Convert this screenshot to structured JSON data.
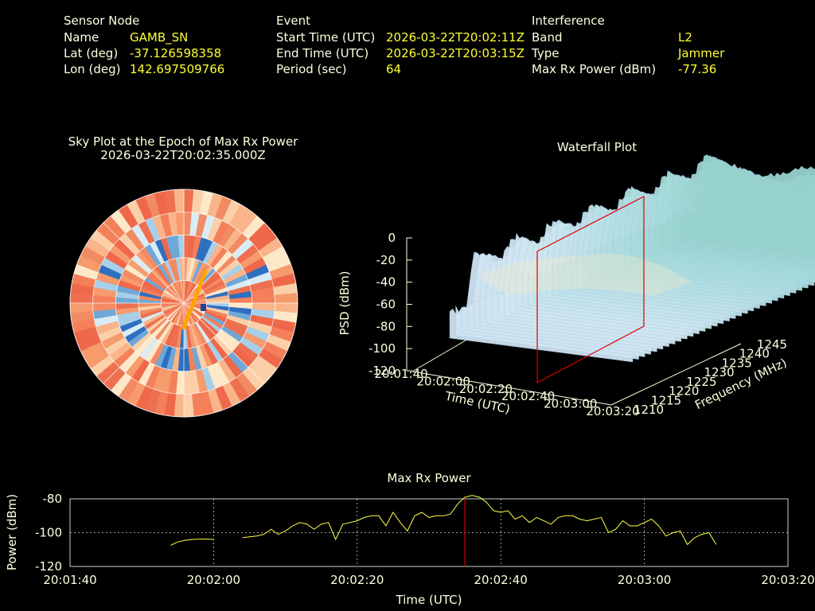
{
  "header": {
    "sensor": {
      "title": "Sensor Node",
      "rows": [
        {
          "label": "Name",
          "value": "GAMB_SN"
        },
        {
          "label": "Lat (deg)",
          "value": "-37.126598358"
        },
        {
          "label": "Lon (deg)",
          "value": "142.697509766"
        }
      ]
    },
    "event": {
      "title": "Event",
      "rows": [
        {
          "label": "Start Time (UTC)",
          "value": "2026-03-22T20:02:11Z"
        },
        {
          "label": "End Time (UTC)",
          "value": "2026-03-22T20:03:15Z"
        },
        {
          "label": "Period (sec)",
          "value": "64"
        }
      ]
    },
    "interference": {
      "title": "Interference",
      "rows": [
        {
          "label": "Band",
          "value": "L2"
        },
        {
          "label": "Type",
          "value": "Jammer"
        },
        {
          "label": "Max Rx Power (dBm)",
          "value": "-77.36"
        }
      ]
    }
  },
  "sky_plot": {
    "title": "Sky Plot at the Epoch of Max Rx Power",
    "subtitle": "2026-03-22T20:02:35.000Z"
  },
  "waterfall": {
    "title": "Waterfall Plot"
  },
  "colors": {
    "text": "#ffffe0",
    "value": "#ffff33",
    "series": "#ffff44",
    "marker": "#dd0000",
    "grid": "#cccccc",
    "sky_track": "#ffa500"
  },
  "chart_data": [
    {
      "type": "heatmap",
      "title": "Sky Plot at the Epoch of Max Rx Power",
      "subtitle": "2026-03-22T20:02:35.000Z",
      "projection": "polar",
      "rings": 5,
      "sectors": 36,
      "spokes_deg": [
        0,
        45,
        90,
        135,
        180,
        225,
        270,
        315
      ]
    },
    {
      "type": "area",
      "title": "Waterfall Plot",
      "xlabel": "Time (UTC)",
      "ylabel": "Frequency (MHz)",
      "zlabel": "PSD (dBm)",
      "x_ticks": [
        "20:01:40",
        "20:02:00",
        "20:02:20",
        "20:02:40",
        "20:03:00",
        "20:03:20"
      ],
      "y_ticks": [
        1210,
        1215,
        1220,
        1225,
        1230,
        1235,
        1240,
        1245
      ],
      "z_ticks": [
        0,
        -20,
        -40,
        -60,
        -80,
        -100,
        -120
      ],
      "zlim": [
        -120,
        0
      ],
      "marker_time": "20:02:35"
    },
    {
      "type": "line",
      "title": "Max Rx Power",
      "xlabel": "Time (UTC)",
      "ylabel": "Power (dBm)",
      "x_ticks": [
        "20:01:40",
        "20:02:00",
        "20:02:20",
        "20:02:40",
        "20:03:00",
        "20:03:20"
      ],
      "y_ticks": [
        -80,
        -100,
        -120
      ],
      "xlim_sec": [
        0,
        100
      ],
      "ylim": [
        -120,
        -80
      ],
      "grid": true,
      "marker_sec": 55,
      "segments": [
        {
          "x": [
            14,
            15,
            16,
            17,
            18,
            19,
            20
          ],
          "y": [
            -107.5,
            -105.5,
            -104.5,
            -104,
            -103.8,
            -103.8,
            -104
          ]
        },
        {
          "x": [
            24,
            25,
            26,
            27,
            28,
            29,
            30,
            31,
            32,
            33,
            34,
            35,
            36,
            37,
            38,
            39,
            40,
            41,
            42,
            43,
            44,
            45,
            46,
            47,
            48,
            49,
            50,
            51,
            52,
            53,
            54,
            55,
            56,
            57,
            58,
            59,
            60,
            61,
            62,
            63,
            64,
            65,
            66,
            67,
            68,
            69,
            70,
            71,
            72,
            73,
            74,
            75,
            76,
            77,
            78,
            79,
            80,
            81,
            82,
            83,
            84,
            85,
            86,
            87,
            88,
            89,
            90
          ],
          "y": [
            -103,
            -102.5,
            -102,
            -101,
            -98,
            -101,
            -99,
            -96,
            -94,
            -95,
            -98,
            -95,
            -94,
            -104,
            -95,
            -94,
            -93,
            -91,
            -90,
            -90,
            -96,
            -88,
            -94,
            -99,
            -90,
            -88,
            -91,
            -90,
            -90,
            -89,
            -83,
            -79,
            -78,
            -79,
            -82,
            -87,
            -88,
            -87,
            -92,
            -90,
            -94,
            -91,
            -93,
            -95,
            -91,
            -90,
            -90,
            -92,
            -93,
            -92,
            -91,
            -100,
            -98,
            -93,
            -96,
            -96,
            -94,
            -92,
            -96,
            -102,
            -100,
            -99,
            -107,
            -103,
            -101,
            -100,
            -107
          ]
        }
      ]
    }
  ]
}
